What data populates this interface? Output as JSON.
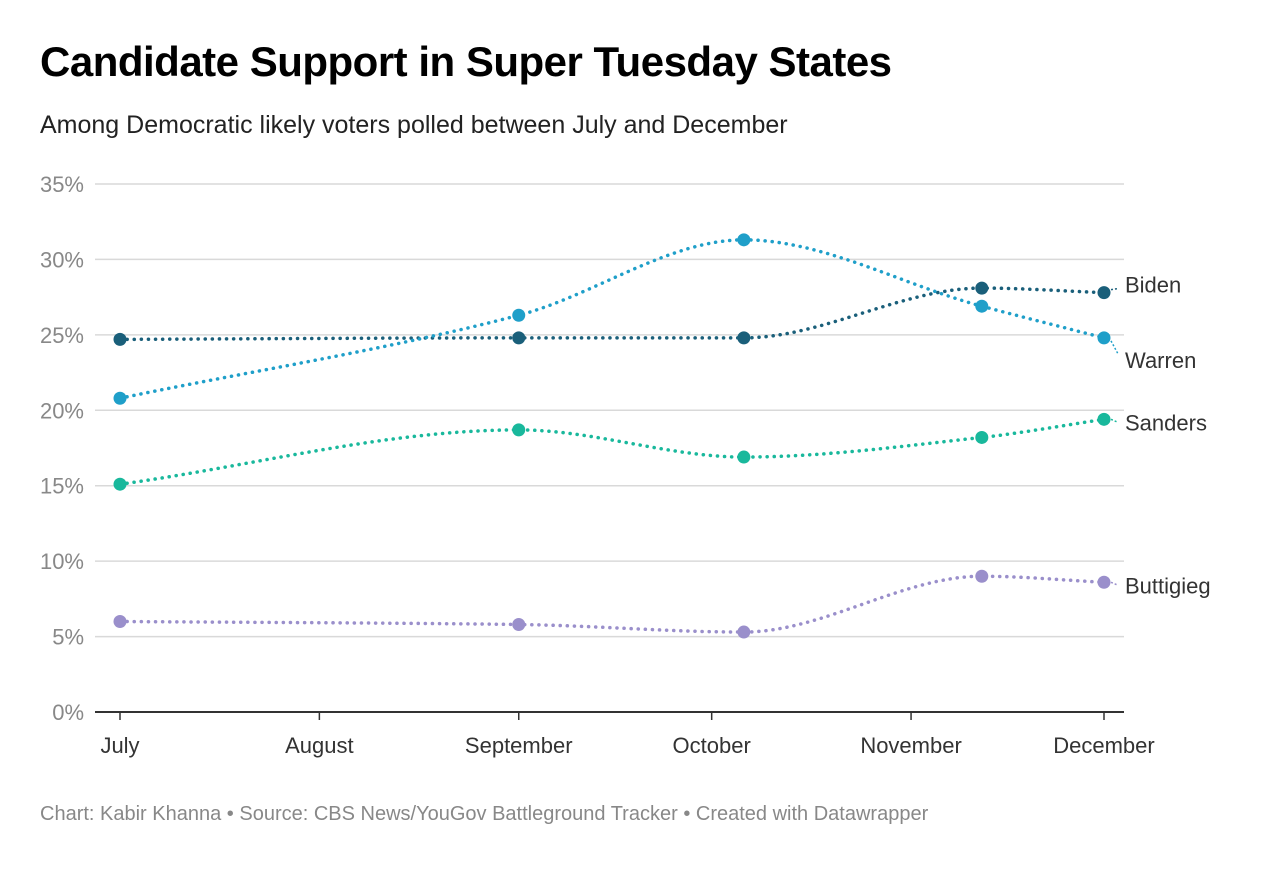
{
  "header": {
    "title": "Candidate Support in Super Tuesday States",
    "subtitle": "Among Democratic likely voters polled between July and December"
  },
  "footer": {
    "credit": "Chart: Kabir Khanna",
    "source": "Source: CBS News/YouGov Battleground Tracker",
    "tool": "Created with Datawrapper",
    "separator": "•"
  },
  "chart_data": {
    "type": "line",
    "title": "Candidate Support in Super Tuesday States",
    "subtitle": "Among Democratic likely voters polled between July and December",
    "xlabel": "",
    "ylabel": "",
    "x_axis_type": "date",
    "x_range": [
      "2019-07-01",
      "2019-12-10"
    ],
    "x_ticks": [
      {
        "label": "July",
        "date": "2019-07-01"
      },
      {
        "label": "August",
        "date": "2019-08-01"
      },
      {
        "label": "September",
        "date": "2019-09-01"
      },
      {
        "label": "October",
        "date": "2019-10-01"
      },
      {
        "label": "November",
        "date": "2019-11-01"
      },
      {
        "label": "December",
        "date": "2019-12-01"
      }
    ],
    "x": [
      "2019-07-01",
      "2019-09-01",
      "2019-10-06",
      "2019-11-12",
      "2019-12-01"
    ],
    "ylim": [
      0,
      35
    ],
    "y_ticks": [
      0,
      5,
      10,
      15,
      20,
      25,
      30,
      35
    ],
    "y_tick_suffix": "%",
    "grid": true,
    "legend": "direct labels at line ends (right)",
    "line_style": "dotted",
    "series": [
      {
        "name": "Biden",
        "color": "#1a5f7a",
        "values": [
          24.7,
          24.8,
          24.8,
          28.1,
          27.8
        ]
      },
      {
        "name": "Warren",
        "color": "#1f9fc9",
        "values": [
          20.8,
          26.3,
          31.3,
          26.9,
          24.8
        ]
      },
      {
        "name": "Sanders",
        "color": "#19b89c",
        "values": [
          15.1,
          18.7,
          16.9,
          18.2,
          19.4
        ]
      },
      {
        "name": "Buttigieg",
        "color": "#9a8fcb",
        "values": [
          6.0,
          5.8,
          5.3,
          9.0,
          8.6
        ]
      }
    ]
  }
}
